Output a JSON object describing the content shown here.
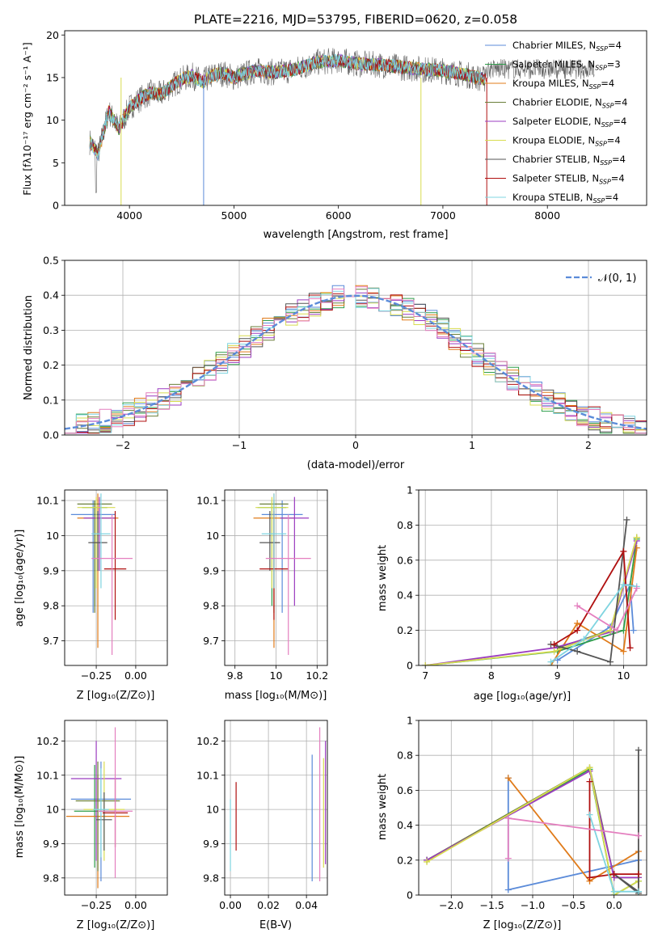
{
  "figure_title": "PLATE=2216, MJD=53795, FIBERID=0620, z=0.058",
  "colors": {
    "chabrier_miles": "#5b8bd9",
    "salpeter_miles": "#2e9e4a",
    "kroupa_miles": "#e07b1a",
    "chabrier_elodie": "#6a7f3a",
    "salpeter_elodie": "#9b3cc0",
    "kroupa_elodie": "#d8dc50",
    "chabrier_stelib": "#555555",
    "salpeter_stelib": "#b01010",
    "kroupa_stelib": "#7fd4e0",
    "pink": "#e47fbf",
    "normal_curve": "#5b8bd9"
  },
  "legend": [
    {
      "label": "Chabrier MILES, N",
      "sub": "SSP",
      "tail": "=4",
      "color": "#5b8bd9"
    },
    {
      "label": "Salpeter MILES, N",
      "sub": "SSP",
      "tail": "=3",
      "color": "#2e9e4a"
    },
    {
      "label": "Kroupa MILES, N",
      "sub": "SSP",
      "tail": "=4",
      "color": "#e07b1a"
    },
    {
      "label": "Chabrier ELODIE, N",
      "sub": "SSP",
      "tail": "=4",
      "color": "#6a7f3a"
    },
    {
      "label": "Salpeter ELODIE, N",
      "sub": "SSP",
      "tail": "=4",
      "color": "#9b3cc0"
    },
    {
      "label": "Kroupa ELODIE, N",
      "sub": "SSP",
      "tail": "=4",
      "color": "#d8dc50"
    },
    {
      "label": "Chabrier STELIB, N",
      "sub": "SSP",
      "tail": "=4",
      "color": "#555555"
    },
    {
      "label": "Salpeter STELIB, N",
      "sub": "SSP",
      "tail": "=4",
      "color": "#b01010"
    },
    {
      "label": "Kroupa STELIB, N",
      "sub": "SSP",
      "tail": "=4",
      "color": "#7fd4e0"
    }
  ],
  "chart_data": [
    {
      "id": "spectrum",
      "type": "line",
      "title": "PLATE=2216, MJD=53795, FIBERID=0620, z=0.058",
      "xlabel": "wavelength [Angstrom, rest frame]",
      "ylabel": "Flux [fλ10⁻¹⁷ erg cm⁻² s⁻¹ A⁻¹]",
      "xlim": [
        3380,
        8950
      ],
      "ylim": [
        0,
        20.5
      ],
      "xticks": [
        4000,
        5000,
        6000,
        7000,
        8000
      ],
      "yticks": [
        0,
        5,
        10,
        15,
        20
      ],
      "grid": false,
      "legend_position": "right",
      "series_model": {
        "name": "model",
        "x": [
          3620,
          3700,
          3800,
          3900,
          4000,
          4100,
          4200,
          4300,
          4400,
          4500,
          4600,
          4700,
          4800,
          4900,
          5000,
          5200,
          5400,
          5600,
          5800,
          6000,
          6200,
          6400,
          6600,
          6800,
          7000,
          7200,
          7400
        ],
        "y": [
          7.5,
          6.0,
          11.0,
          9.0,
          11.5,
          12.5,
          13.2,
          13.0,
          14.0,
          14.8,
          15.2,
          14.5,
          15.3,
          15.5,
          15.0,
          15.8,
          15.6,
          16.0,
          16.8,
          17.0,
          16.6,
          16.5,
          16.2,
          16.0,
          15.8,
          15.4,
          14.8
        ]
      },
      "series_data": {
        "name": "data",
        "x": [
          3620,
          8450
        ],
        "y_range": [
          0.5,
          18.0
        ]
      }
    },
    {
      "id": "residuals",
      "type": "histogram",
      "xlabel": "(data-model)/error",
      "ylabel": "Normed distribution",
      "xlim": [
        -2.5,
        2.5
      ],
      "ylim": [
        0,
        0.5
      ],
      "xticks": [
        -2,
        -1,
        0,
        1,
        2
      ],
      "xtick_labels": [
        "−2",
        "−1",
        "0",
        "1",
        "2"
      ],
      "yticks": [
        0.0,
        0.1,
        0.2,
        0.3,
        0.4,
        0.5
      ],
      "ytick_labels": [
        "0.0",
        "0.1",
        "0.2",
        "0.3",
        "0.4",
        "0.5"
      ],
      "grid": true,
      "legend_position": "top-right",
      "legend_label": "𝒩(0, 1)",
      "reference_curve": {
        "name": "N(0,1)",
        "mean": 0,
        "sigma": 1
      }
    },
    {
      "id": "age_vs_Z",
      "type": "scatter",
      "xlabel": "Z [log₁₀(Z/Z⊙)]",
      "ylabel": "age  [log₁₀(age/yr)]",
      "xlim": [
        -0.45,
        0.2
      ],
      "ylim": [
        9.63,
        10.13
      ],
      "xticks": [
        -0.25,
        0.0
      ],
      "xtick_labels": [
        "−0.25",
        "0.00"
      ],
      "yticks": [
        9.7,
        9.8,
        9.9,
        10.0,
        10.1
      ],
      "grid": true,
      "points": [
        {
          "x": -0.27,
          "y": 10.06,
          "xerr": 0.14,
          "ylo": 9.78,
          "yhi": 10.1,
          "color": "#5b8bd9"
        },
        {
          "x": -0.26,
          "y": 10.08,
          "xerr": 0.08,
          "ylo": 9.8,
          "yhi": 10.1,
          "color": "#2e9e4a"
        },
        {
          "x": -0.24,
          "y": 10.05,
          "xerr": 0.13,
          "ylo": 9.68,
          "yhi": 10.12,
          "color": "#e07b1a"
        },
        {
          "x": -0.26,
          "y": 10.09,
          "xerr": 0.11,
          "ylo": 9.78,
          "yhi": 10.1,
          "color": "#6a7f3a"
        },
        {
          "x": -0.23,
          "y": 10.05,
          "xerr": 0.1,
          "ylo": 9.9,
          "yhi": 10.11,
          "color": "#9b3cc0"
        },
        {
          "x": -0.25,
          "y": 10.08,
          "xerr": 0.12,
          "ylo": 9.85,
          "yhi": 10.11,
          "color": "#d8dc50"
        },
        {
          "x": -0.24,
          "y": 9.98,
          "xerr": 0.06,
          "ylo": 9.9,
          "yhi": 10.07,
          "color": "#555555"
        },
        {
          "x": -0.13,
          "y": 9.905,
          "xerr": 0.07,
          "ylo": 9.76,
          "yhi": 10.07,
          "color": "#b01010"
        },
        {
          "x": -0.22,
          "y": 10.005,
          "xerr": 0.06,
          "ylo": 9.85,
          "yhi": 10.12,
          "color": "#7fd4e0"
        },
        {
          "x": -0.15,
          "y": 9.935,
          "xerr": 0.13,
          "ylo": 9.66,
          "yhi": 10.06,
          "color": "#e47fbf"
        }
      ]
    },
    {
      "id": "age_vs_mass",
      "type": "scatter",
      "xlabel": "mass [log₁₀(M/M⊙)]",
      "ylabel": "",
      "xlim": [
        9.75,
        10.25
      ],
      "ylim": [
        9.63,
        10.13
      ],
      "xticks": [
        9.8,
        10.0,
        10.2
      ],
      "yticks": [
        9.7,
        9.8,
        9.9,
        10.0,
        10.1
      ],
      "grid": true,
      "points": [
        {
          "x": 10.03,
          "y": 10.06,
          "xerr": 0.1,
          "ylo": 9.78,
          "yhi": 10.1,
          "color": "#5b8bd9"
        },
        {
          "x": 9.98,
          "y": 10.08,
          "xerr": 0.07,
          "ylo": 9.8,
          "yhi": 10.1,
          "color": "#2e9e4a"
        },
        {
          "x": 9.99,
          "y": 10.05,
          "xerr": 0.1,
          "ylo": 9.68,
          "yhi": 10.12,
          "color": "#e07b1a"
        },
        {
          "x": 9.99,
          "y": 10.09,
          "xerr": 0.07,
          "ylo": 9.78,
          "yhi": 10.1,
          "color": "#6a7f3a"
        },
        {
          "x": 10.09,
          "y": 10.05,
          "xerr": 0.07,
          "ylo": 9.8,
          "yhi": 10.11,
          "color": "#9b3cc0"
        },
        {
          "x": 9.98,
          "y": 10.08,
          "xerr": 0.08,
          "ylo": 9.85,
          "yhi": 10.11,
          "color": "#d8dc50"
        },
        {
          "x": 9.97,
          "y": 9.98,
          "xerr": 0.05,
          "ylo": 9.9,
          "yhi": 10.07,
          "color": "#555555"
        },
        {
          "x": 9.99,
          "y": 9.905,
          "xerr": 0.07,
          "ylo": 9.76,
          "yhi": 10.07,
          "color": "#b01010"
        },
        {
          "x": 9.99,
          "y": 10.005,
          "xerr": 0.06,
          "ylo": 9.85,
          "yhi": 10.12,
          "color": "#7fd4e0"
        },
        {
          "x": 10.06,
          "y": 9.935,
          "xerr": 0.11,
          "ylo": 9.66,
          "yhi": 10.06,
          "color": "#e47fbf"
        }
      ]
    },
    {
      "id": "weight_vs_age",
      "type": "line",
      "xlabel": "age  [log₁₀(age/yr)]",
      "ylabel": "mass weight",
      "xlim": [
        6.9,
        10.35
      ],
      "ylim": [
        0,
        1
      ],
      "xticks": [
        7,
        8,
        9,
        10
      ],
      "yticks": [
        0.0,
        0.2,
        0.4,
        0.6,
        0.8,
        1.0
      ],
      "grid": true,
      "series": [
        {
          "color": "#5b8bd9",
          "x": [
            9.0,
            9.8,
            10.1,
            10.15
          ],
          "y": [
            0.03,
            0.22,
            0.46,
            0.2
          ]
        },
        {
          "color": "#2e9e4a",
          "x": [
            7.0,
            9.0,
            10.0,
            10.2
          ],
          "y": [
            0.0,
            0.08,
            0.2,
            0.72
          ]
        },
        {
          "color": "#e07b1a",
          "x": [
            8.9,
            9.3,
            10.0,
            10.2
          ],
          "y": [
            0.0,
            0.24,
            0.08,
            0.67
          ]
        },
        {
          "color": "#6a7f3a",
          "x": [
            9.0,
            9.8,
            10.2
          ],
          "y": [
            0.1,
            0.2,
            0.73
          ]
        },
        {
          "color": "#9b3cc0",
          "x": [
            7.0,
            8.95,
            9.8,
            10.2
          ],
          "y": [
            0.0,
            0.1,
            0.19,
            0.71
          ]
        },
        {
          "color": "#d8dc50",
          "x": [
            7.0,
            8.95,
            9.8,
            10.2
          ],
          "y": [
            0.0,
            0.08,
            0.2,
            0.73
          ]
        },
        {
          "color": "#555555",
          "x": [
            8.9,
            9.3,
            9.8,
            10.05
          ],
          "y": [
            0.12,
            0.08,
            0.02,
            0.83
          ]
        },
        {
          "color": "#b01010",
          "x": [
            8.95,
            9.3,
            10.0,
            10.1
          ],
          "y": [
            0.12,
            0.2,
            0.65,
            0.1
          ]
        },
        {
          "color": "#7fd4e0",
          "x": [
            8.9,
            9.4,
            10.0,
            10.2
          ],
          "y": [
            0.02,
            0.15,
            0.46,
            0.45
          ]
        },
        {
          "color": "#e47fbf",
          "x": [
            9.3,
            9.9,
            10.2
          ],
          "y": [
            0.34,
            0.2,
            0.44
          ]
        }
      ]
    },
    {
      "id": "mass_vs_Z",
      "type": "scatter",
      "xlabel": "Z [log₁₀(Z/Z⊙)]",
      "ylabel": "mass [log₁₀(M/M⊙)]",
      "xlim": [
        -0.45,
        0.2
      ],
      "ylim": [
        9.75,
        10.26
      ],
      "xticks": [
        -0.25,
        0.0
      ],
      "xtick_labels": [
        "−0.25",
        "0.00"
      ],
      "yticks": [
        9.8,
        9.9,
        10.0,
        10.1,
        10.2
      ],
      "grid": true,
      "points": [
        {
          "x": -0.22,
          "y": 10.03,
          "xerr": 0.19,
          "ylo": 9.79,
          "yhi": 10.14,
          "color": "#5b8bd9"
        },
        {
          "x": -0.26,
          "y": 9.995,
          "xerr": 0.13,
          "ylo": 9.83,
          "yhi": 10.13,
          "color": "#2e9e4a"
        },
        {
          "x": -0.24,
          "y": 9.98,
          "xerr": 0.2,
          "ylo": 9.77,
          "yhi": 10.1,
          "color": "#e07b1a"
        },
        {
          "x": -0.24,
          "y": 10.025,
          "xerr": 0.14,
          "ylo": 9.82,
          "yhi": 10.14,
          "color": "#6a7f3a"
        },
        {
          "x": -0.25,
          "y": 10.09,
          "xerr": 0.16,
          "ylo": 9.85,
          "yhi": 10.2,
          "color": "#9b3cc0"
        },
        {
          "x": -0.2,
          "y": 10.0,
          "xerr": 0.13,
          "ylo": 9.85,
          "yhi": 10.14,
          "color": "#d8dc50"
        },
        {
          "x": -0.2,
          "y": 9.97,
          "xerr": 0.05,
          "ylo": 9.88,
          "yhi": 10.05,
          "color": "#555555"
        },
        {
          "x": -0.13,
          "y": 9.99,
          "xerr": 0.08,
          "ylo": 9.89,
          "yhi": 10.09,
          "color": "#b01010"
        },
        {
          "x": -0.22,
          "y": 10.0,
          "xerr": 0.05,
          "ylo": 9.86,
          "yhi": 10.12,
          "color": "#7fd4e0"
        },
        {
          "x": -0.13,
          "y": 9.995,
          "xerr": 0.11,
          "ylo": 9.8,
          "yhi": 10.24,
          "color": "#e47fbf"
        }
      ]
    },
    {
      "id": "mass_vs_ebv",
      "type": "scatter",
      "xlabel": "E(B-V)",
      "ylabel": "",
      "xlim": [
        -0.003,
        0.051
      ],
      "ylim": [
        9.75,
        10.26
      ],
      "xticks": [
        0.0,
        0.02,
        0.04
      ],
      "xtick_labels": [
        "0.00",
        "0.02",
        "0.04"
      ],
      "yticks": [
        9.8,
        9.9,
        10.0,
        10.1,
        10.2
      ],
      "grid": true,
      "points": [
        {
          "x": 0.0,
          "y": 9.93,
          "ylo": 9.82,
          "yhi": 10.03,
          "color": "#7fd4e0"
        },
        {
          "x": 0.003,
          "y": 9.98,
          "ylo": 9.88,
          "yhi": 10.08,
          "color": "#b01010"
        },
        {
          "x": 0.043,
          "y": 10.0,
          "ylo": 9.79,
          "yhi": 10.16,
          "color": "#5b8bd9"
        },
        {
          "x": 0.047,
          "y": 10.0,
          "ylo": 9.79,
          "yhi": 10.24,
          "color": "#e47fbf"
        },
        {
          "x": 0.049,
          "y": 10.0,
          "ylo": 9.83,
          "yhi": 10.15,
          "color": "#d8dc50"
        },
        {
          "x": 0.05,
          "y": 10.05,
          "ylo": 9.84,
          "yhi": 10.2,
          "color": "#9b3cc0"
        }
      ]
    },
    {
      "id": "weight_vs_Z",
      "type": "line",
      "xlabel": "Z [log₁₀(Z/Z⊙)]",
      "ylabel": "mass weight",
      "xlim": [
        -2.4,
        0.4
      ],
      "ylim": [
        0,
        1
      ],
      "xticks": [
        -2.0,
        -1.5,
        -1.0,
        -0.5,
        0.0
      ],
      "xtick_labels": [
        "−2.0",
        "−1.5",
        "−1.0",
        "−0.5",
        "0.0"
      ],
      "yticks": [
        0.0,
        0.2,
        0.4,
        0.6,
        0.8,
        1.0
      ],
      "grid": true,
      "series": [
        {
          "color": "#5b8bd9",
          "x": [
            -1.3,
            -1.3,
            0.3
          ],
          "y": [
            0.67,
            0.03,
            0.2
          ]
        },
        {
          "color": "#2e9e4a",
          "x": [
            -2.3,
            -0.3,
            0.0,
            0.3
          ],
          "y": [
            0.2,
            0.72,
            0.0,
            0.08
          ]
        },
        {
          "color": "#e07b1a",
          "x": [
            -1.3,
            -0.3,
            0.3,
            0.3
          ],
          "y": [
            0.67,
            0.08,
            0.25,
            0.0
          ]
        },
        {
          "color": "#6a7f3a",
          "x": [
            -2.3,
            -0.3,
            0.0,
            0.3
          ],
          "y": [
            0.2,
            0.73,
            0.1,
            0.1
          ]
        },
        {
          "color": "#9b3cc0",
          "x": [
            -2.3,
            -0.3,
            0.0,
            0.3
          ],
          "y": [
            0.2,
            0.71,
            0.1,
            0.1
          ]
        },
        {
          "color": "#d8dc50",
          "x": [
            -2.3,
            -0.3,
            0.0,
            0.3
          ],
          "y": [
            0.19,
            0.73,
            0.0,
            0.08
          ]
        },
        {
          "color": "#555555",
          "x": [
            0.3,
            0.3,
            0.0,
            0.3
          ],
          "y": [
            0.83,
            0.01,
            0.12,
            0.02
          ]
        },
        {
          "color": "#b01010",
          "x": [
            -0.3,
            -0.3,
            0.0,
            0.3
          ],
          "y": [
            0.65,
            0.1,
            0.12,
            0.12
          ]
        },
        {
          "color": "#7fd4e0",
          "x": [
            -0.3,
            0.0,
            0.3
          ],
          "y": [
            0.46,
            0.02,
            0.02
          ]
        },
        {
          "color": "#e47fbf",
          "x": [
            -1.3,
            -1.3,
            0.3
          ],
          "y": [
            0.21,
            0.44,
            0.34
          ]
        }
      ]
    }
  ]
}
